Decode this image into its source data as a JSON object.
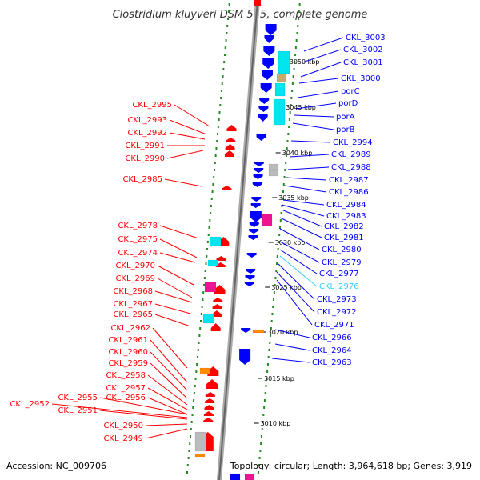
{
  "title": "Clostridium kluyveri DSM 555, complete genome",
  "accession": "Accession: NC_009706",
  "topology": "Topology: circular; Length: 3,964,618 bp; Genes: 3,919",
  "colors": {
    "forward": "#ff0000",
    "reverse": "#0000ff",
    "cyan": "#00e5ee",
    "magenta": "#ee1493",
    "orange": "#ff8c00",
    "grey": "#bbbbbb",
    "tan": "#c8aa6e",
    "highlight": "#33ccff",
    "dots": "#228b22"
  },
  "scale_ticks": [
    "3050 kbp",
    "3045 kbp",
    "3040 kbp",
    "3035 kbp",
    "3030 kbp",
    "3025 kbp",
    "3020 kbp",
    "3015 kbp",
    "3010 kbp"
  ],
  "left_labels": [
    "CKL_2995",
    "CKL_2993",
    "CKL_2992",
    "CKL_2991",
    "CKL_2990",
    "CKL_2985",
    "CKL_2978",
    "CKL_2975",
    "CKL_2974",
    "CKL_2970",
    "CKL_2969",
    "CKL_2968",
    "CKL_2967",
    "CKL_2965",
    "CKL_2962",
    "CKL_2961",
    "CKL_2960",
    "CKL_2959",
    "CKL_2958",
    "CKL_2957",
    "CKL_2955",
    "CKL_2956",
    "CKL_2952",
    "CKL_2951",
    "CKL_2950",
    "CKL_2949"
  ],
  "right_labels": [
    "CKL_3003",
    "CKL_3002",
    "CKL_3001",
    "CKL_3000",
    "porC",
    "porD",
    "porA",
    "porB",
    "CKL_2994",
    "CKL_2989",
    "CKL_2988",
    "CKL_2987",
    "CKL_2986",
    "CKL_2984",
    "CKL_2983",
    "CKL_2982",
    "CKL_2981",
    "CKL_2980",
    "CKL_2979",
    "CKL_2977",
    "CKL_2976",
    "CKL_2973",
    "CKL_2972",
    "CKL_2971",
    "CKL_2966",
    "CKL_2964",
    "CKL_2963"
  ],
  "highlighted_label": "CKL_2976"
}
